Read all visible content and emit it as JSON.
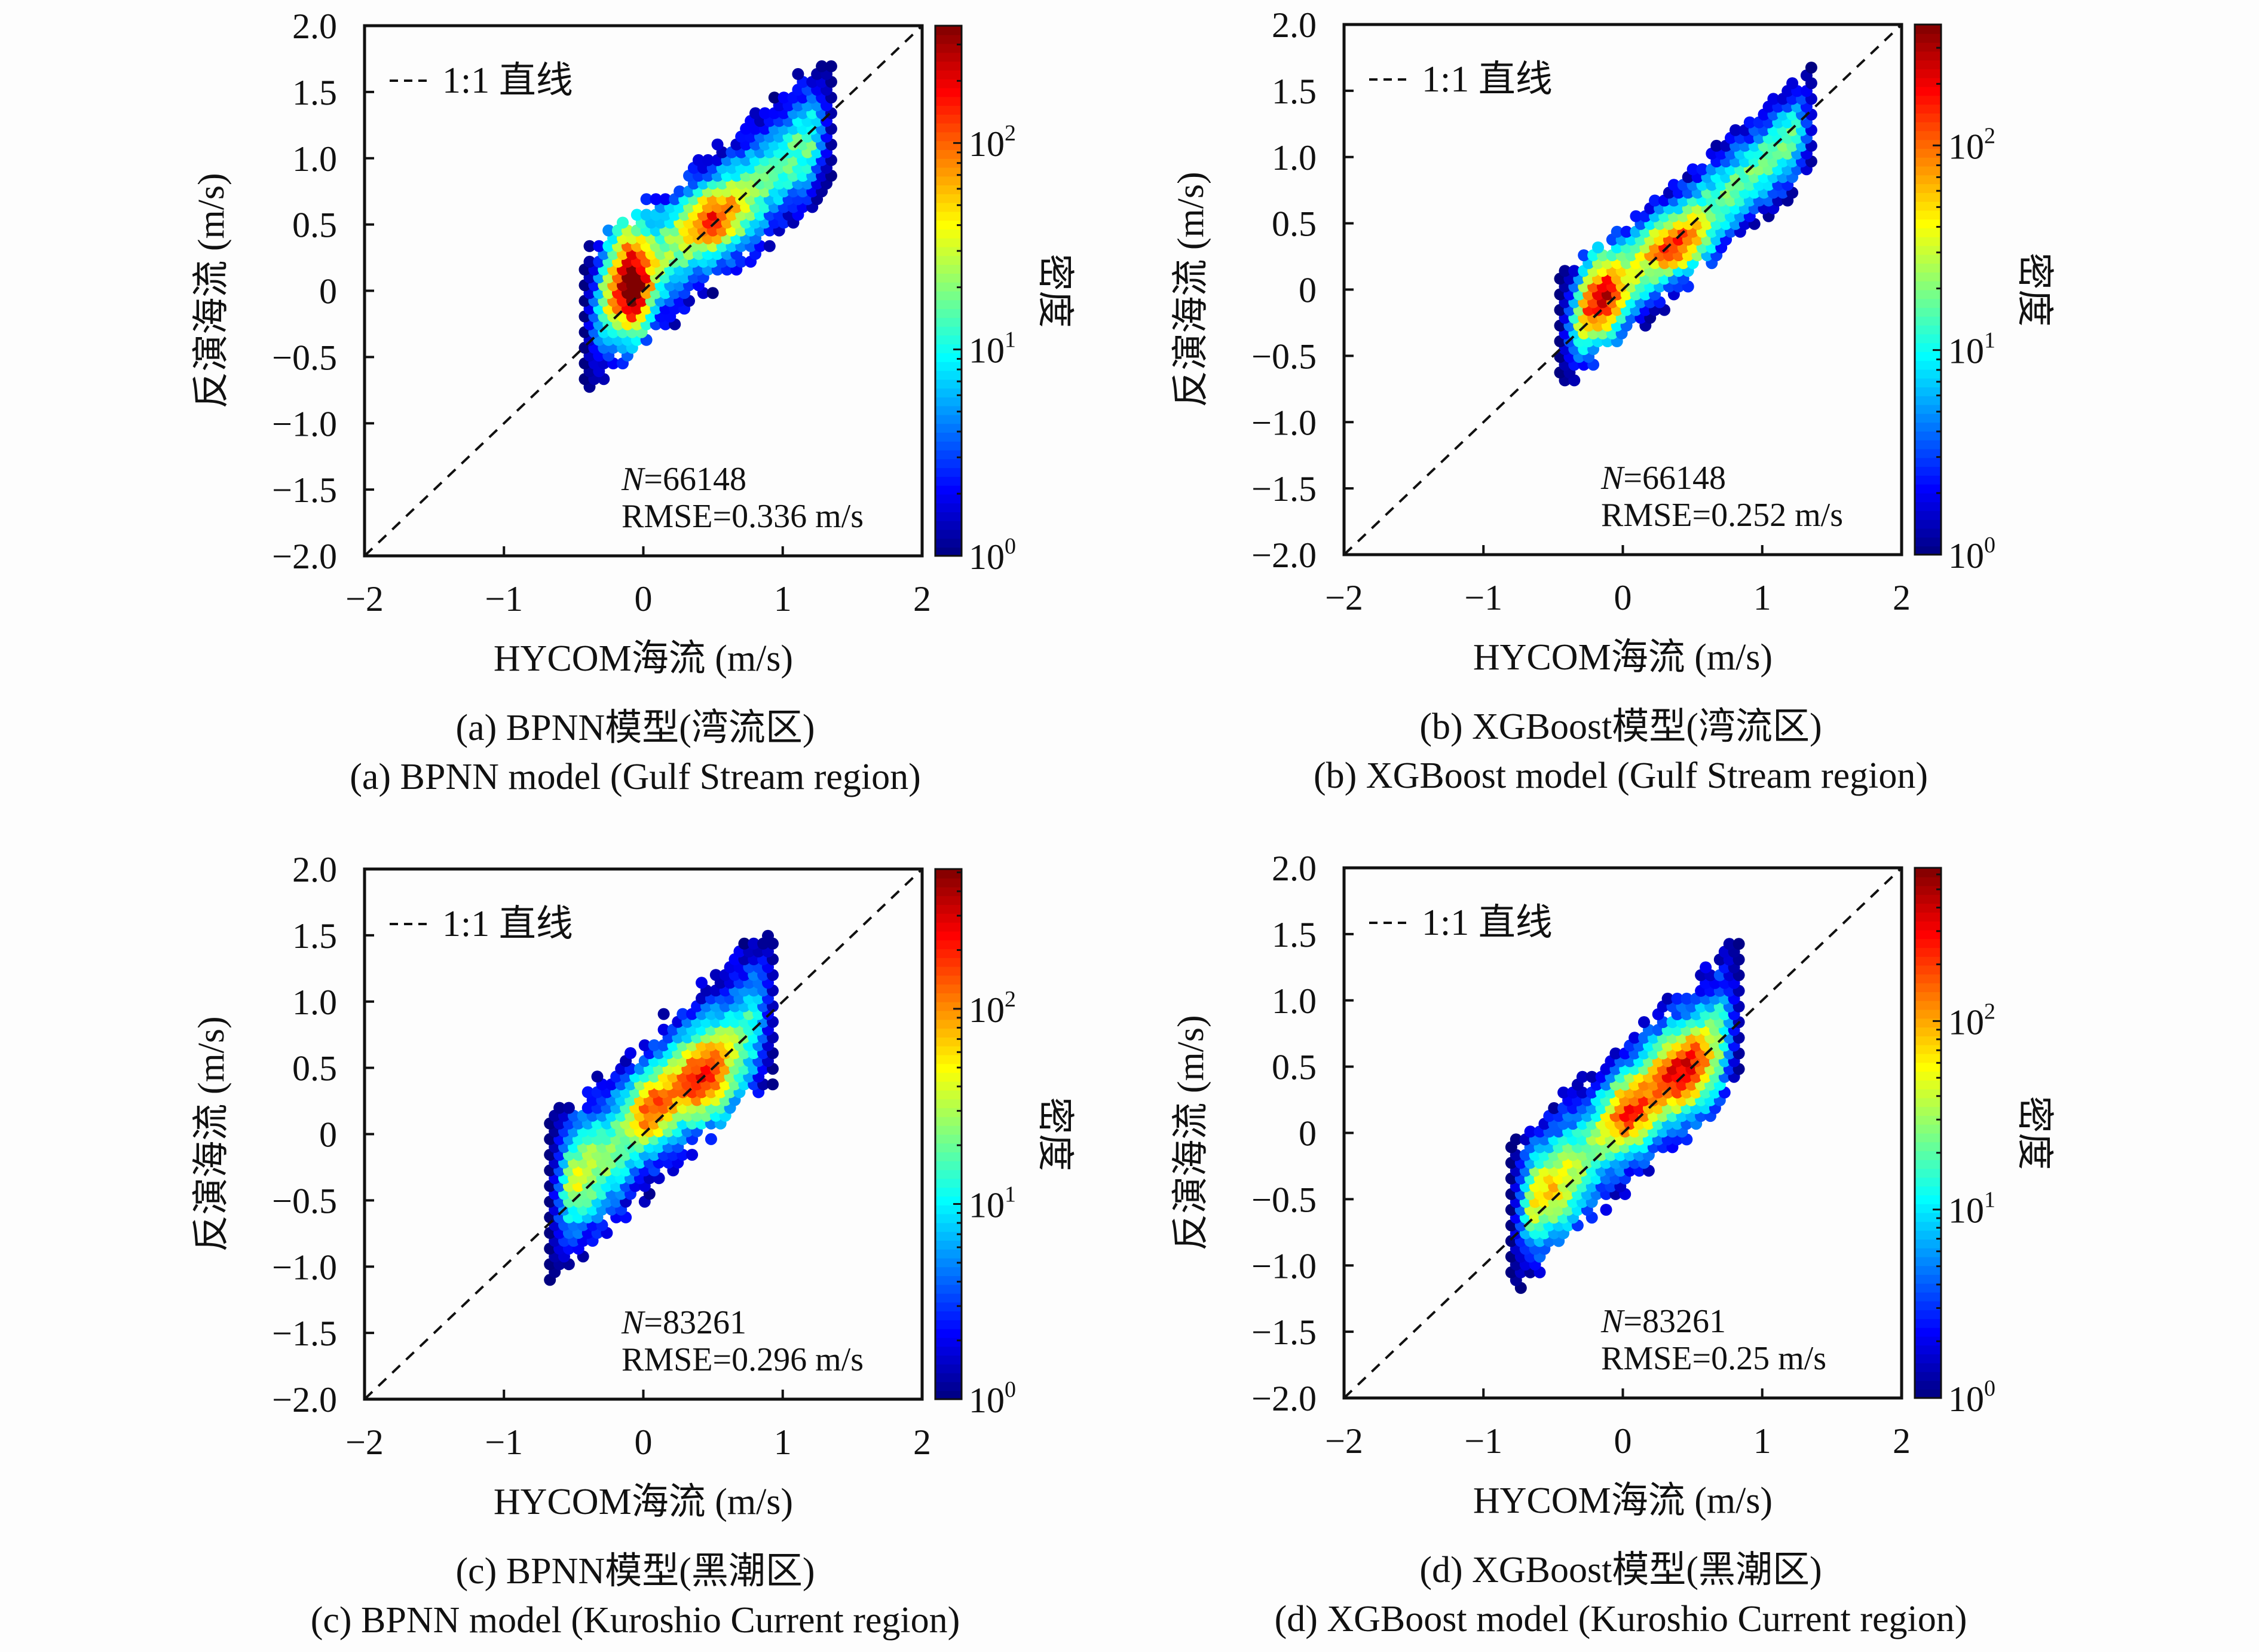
{
  "chart_data": [
    {
      "type": "heatmap",
      "subtype": "hexbin-density",
      "id": "a",
      "xlabel": "HYCOM海流 (m/s)",
      "ylabel": "反演海流 (m/s)",
      "xlim": [
        -2,
        2
      ],
      "ylim": [
        -2,
        2
      ],
      "xticks": [
        "−2",
        "−1",
        "0",
        "1",
        "2"
      ],
      "yticks": [
        "2.0",
        "1.5",
        "1.0",
        "0.5",
        "0",
        "−0.5",
        "−1.0",
        "−1.5",
        "−2.0"
      ],
      "legend": "1:1 直线",
      "legend_placement": "top-left",
      "annotation_n": "N",
      "annotation_n_value": "=66148",
      "annotation_rmse": "RMSE=0.336 m/s",
      "colorbar_label": "密度",
      "colorbar_scale": "log",
      "colorbar_range": [
        1,
        370
      ],
      "colorbar_ticks": [
        "10",
        "10",
        "10"
      ],
      "colorbar_tick_exponents": [
        "0",
        "1",
        "2"
      ],
      "colormap": "jet",
      "caption_cn": "(a) BPNN模型(湾流区)",
      "caption_en": "(a) BPNN model (Gulf Stream region)"
    },
    {
      "type": "heatmap",
      "subtype": "hexbin-density",
      "id": "b",
      "xlabel": "HYCOM海流 (m/s)",
      "ylabel": "反演海流 (m/s)",
      "xlim": [
        -2,
        2
      ],
      "ylim": [
        -2,
        2
      ],
      "xticks": [
        "−2",
        "−1",
        "0",
        "1",
        "2"
      ],
      "yticks": [
        "2.0",
        "1.5",
        "1.0",
        "0.5",
        "0",
        "−0.5",
        "−1.0",
        "−1.5",
        "−2.0"
      ],
      "legend": "1:1 直线",
      "legend_placement": "top-left",
      "annotation_n": "N",
      "annotation_n_value": "=66148",
      "annotation_rmse": "RMSE=0.252 m/s",
      "colorbar_label": "密度",
      "colorbar_scale": "log",
      "colorbar_range": [
        1,
        390
      ],
      "colorbar_ticks": [
        "10",
        "10",
        "10"
      ],
      "colorbar_tick_exponents": [
        "0",
        "1",
        "2"
      ],
      "colormap": "jet",
      "caption_cn": "(b) XGBoost模型(湾流区)",
      "caption_en": "(b) XGBoost model (Gulf Stream region)"
    },
    {
      "type": "heatmap",
      "subtype": "hexbin-density",
      "id": "c",
      "xlabel": "HYCOM海流 (m/s)",
      "ylabel": "反演海流 (m/s)",
      "xlim": [
        -2,
        2
      ],
      "ylim": [
        -2,
        2
      ],
      "xticks": [
        "−2",
        "−1",
        "0",
        "1",
        "2"
      ],
      "yticks": [
        "2.0",
        "1.5",
        "1.0",
        "0.5",
        "0",
        "−0.5",
        "−1.0",
        "−1.5",
        "−2.0"
      ],
      "legend": "1:1 直线",
      "legend_placement": "top-left",
      "annotation_n": "N",
      "annotation_n_value": "=83261",
      "annotation_rmse": "RMSE=0.296 m/s",
      "colorbar_label": "密度",
      "colorbar_scale": "log",
      "colorbar_range": [
        1,
        520
      ],
      "colorbar_ticks": [
        "10",
        "10",
        "10"
      ],
      "colorbar_tick_exponents": [
        "0",
        "1",
        "2"
      ],
      "colormap": "jet",
      "caption_cn": "(c) BPNN模型(黑潮区)",
      "caption_en": "(c) BPNN model (Kuroshio Current region)"
    },
    {
      "type": "heatmap",
      "subtype": "hexbin-density",
      "id": "d",
      "xlabel": "HYCOM海流 (m/s)",
      "ylabel": "反演海流 (m/s)",
      "xlim": [
        -2,
        2
      ],
      "ylim": [
        -2,
        2
      ],
      "xticks": [
        "−2",
        "−1",
        "0",
        "1",
        "2"
      ],
      "yticks": [
        "2.0",
        "1.5",
        "1.0",
        "0.5",
        "0",
        "−0.5",
        "−1.0",
        "−1.5",
        "−2.0"
      ],
      "legend": "1:1 直线",
      "legend_placement": "top-left",
      "annotation_n": "N",
      "annotation_n_value": "=83261",
      "annotation_rmse": "RMSE=0.25 m/s",
      "colorbar_label": "密度",
      "colorbar_scale": "log",
      "colorbar_range": [
        1,
        650
      ],
      "colorbar_ticks": [
        "10",
        "10",
        "10"
      ],
      "colorbar_tick_exponents": [
        "0",
        "1",
        "2"
      ],
      "colormap": "jet",
      "caption_cn": "(d) XGBoost模型(黑潮区)",
      "caption_en": "(d) XGBoost model (Kuroshio Current region)"
    }
  ]
}
